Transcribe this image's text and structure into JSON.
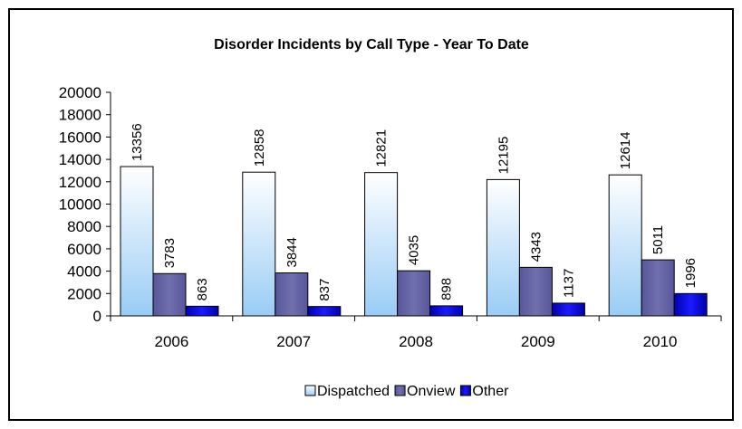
{
  "chart_data": {
    "type": "bar",
    "title": "Disorder Incidents by Call Type - Year To Date",
    "xlabel": "",
    "ylabel": "",
    "categories": [
      "2006",
      "2007",
      "2008",
      "2009",
      "2010"
    ],
    "series": [
      {
        "name": "Dispatched",
        "values": [
          13356,
          12858,
          12821,
          12195,
          12614
        ],
        "labels": [
          "13356",
          "12858",
          "12821",
          "12195",
          "12614"
        ],
        "color": "#d9ecff"
      },
      {
        "name": "Onview",
        "values": [
          3783,
          3844,
          4035,
          4343,
          5011
        ],
        "labels": [
          "3783",
          "3844",
          "4035",
          "4343",
          "5011"
        ],
        "color": "#6a6aa8"
      },
      {
        "name": "Other",
        "values": [
          863,
          837,
          898,
          1137,
          1996
        ],
        "labels": [
          "863",
          "837",
          "898",
          "1137",
          "1996"
        ],
        "color": "#0000d0"
      }
    ],
    "ylim": [
      0,
      20000
    ],
    "yticks": [
      "0",
      "2000",
      "4000",
      "6000",
      "8000",
      "10000",
      "12000",
      "14000",
      "16000",
      "18000",
      "20000"
    ],
    "grid": false,
    "legend_position": "bottom"
  }
}
